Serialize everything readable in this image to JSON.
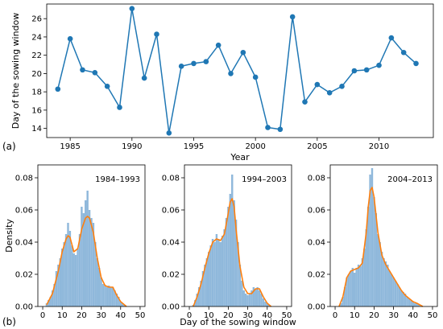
{
  "chart_data": [
    {
      "type": "line",
      "panel_label": "(a)",
      "title": "",
      "xlabel": "Year",
      "ylabel": "Day of the sowing window",
      "xlim": [
        1983.1,
        2014.4
      ],
      "ylim": [
        13.0,
        27.6
      ],
      "x_ticks": [
        1985,
        1990,
        1995,
        2000,
        2005,
        2010
      ],
      "y_ticks": [
        14,
        16,
        18,
        20,
        22,
        24,
        26
      ],
      "grid": false,
      "color": "#1f77b4",
      "series": [
        {
          "x": [
            1984,
            1985,
            1986,
            1987,
            1988,
            1989,
            1990,
            1991,
            1992,
            1993,
            1994,
            1995,
            1996,
            1997,
            1998,
            1999,
            2000,
            2001,
            2002,
            2003,
            2004,
            2005,
            2006,
            2007,
            2008,
            2009,
            2010,
            2011,
            2012,
            2013
          ],
          "y": [
            18.3,
            23.8,
            20.4,
            20.1,
            18.6,
            16.3,
            27.1,
            19.5,
            24.3,
            13.5,
            20.8,
            21.1,
            21.3,
            23.1,
            20.0,
            22.3,
            19.6,
            14.1,
            13.9,
            26.2,
            16.9,
            18.8,
            17.9,
            18.6,
            20.3,
            20.4,
            20.9,
            23.9,
            22.3,
            21.1
          ]
        }
      ]
    },
    {
      "type": "bar",
      "panel_label": "(b)",
      "annotation": "1984–1993",
      "xlabel": "",
      "ylabel": "Density",
      "xlim": [
        -2.5,
        52.5
      ],
      "ylim": [
        0,
        0.088
      ],
      "x_ticks": [
        0,
        10,
        20,
        30,
        40,
        50
      ],
      "y_ticks": [
        0.0,
        0.02,
        0.04,
        0.06,
        0.08
      ],
      "hist_color": "#8fb8db",
      "kde_color": "#ff7f0e",
      "kde": {
        "x": [
          2,
          5,
          8,
          10,
          12,
          13,
          14,
          16,
          18,
          20,
          22,
          23,
          24,
          26,
          28,
          30,
          32,
          34,
          36,
          38,
          40,
          43
        ],
        "y": [
          0.001,
          0.008,
          0.022,
          0.034,
          0.042,
          0.044,
          0.043,
          0.034,
          0.036,
          0.048,
          0.055,
          0.056,
          0.055,
          0.046,
          0.03,
          0.018,
          0.013,
          0.012,
          0.012,
          0.007,
          0.003,
          0.0
        ]
      },
      "hist": {
        "x": [
          1,
          2,
          3,
          4,
          5,
          6,
          7,
          8,
          9,
          10,
          11,
          12,
          13,
          14,
          15,
          16,
          17,
          18,
          19,
          20,
          21,
          22,
          23,
          24,
          25,
          26,
          27,
          28,
          29,
          30,
          31,
          32,
          33,
          34,
          35,
          36,
          37,
          38,
          39,
          40,
          41,
          42,
          43
        ],
        "y": [
          0.0,
          0.002,
          0.004,
          0.006,
          0.01,
          0.014,
          0.022,
          0.026,
          0.03,
          0.036,
          0.04,
          0.045,
          0.052,
          0.047,
          0.038,
          0.033,
          0.032,
          0.036,
          0.045,
          0.062,
          0.058,
          0.066,
          0.072,
          0.06,
          0.055,
          0.052,
          0.04,
          0.03,
          0.024,
          0.018,
          0.014,
          0.013,
          0.012,
          0.013,
          0.012,
          0.012,
          0.01,
          0.008,
          0.006,
          0.003,
          0.002,
          0.001,
          0.0
        ]
      }
    },
    {
      "type": "bar",
      "annotation": "1994–2003",
      "xlabel": "Day of the sowing window",
      "ylabel": "",
      "xlim": [
        -2.5,
        52.5
      ],
      "ylim": [
        0,
        0.088
      ],
      "x_ticks": [
        0,
        10,
        20,
        30,
        40,
        50
      ],
      "y_ticks": [
        0.0,
        0.02,
        0.04,
        0.06,
        0.08
      ],
      "hist_color": "#8fb8db",
      "kde_color": "#ff7f0e",
      "kde": {
        "x": [
          2,
          4,
          6,
          8,
          10,
          12,
          14,
          16,
          18,
          20,
          21,
          22,
          23,
          24,
          26,
          28,
          30,
          32,
          34,
          36,
          38,
          40,
          42
        ],
        "y": [
          0.0,
          0.006,
          0.014,
          0.024,
          0.033,
          0.04,
          0.042,
          0.041,
          0.045,
          0.058,
          0.065,
          0.067,
          0.062,
          0.048,
          0.025,
          0.012,
          0.008,
          0.008,
          0.011,
          0.011,
          0.006,
          0.002,
          0.0
        ]
      },
      "hist": {
        "x": [
          2,
          3,
          4,
          5,
          6,
          7,
          8,
          9,
          10,
          11,
          12,
          13,
          14,
          15,
          16,
          17,
          18,
          19,
          20,
          21,
          22,
          23,
          24,
          25,
          26,
          27,
          28,
          29,
          30,
          31,
          32,
          33,
          34,
          35,
          36,
          37,
          38,
          39,
          40,
          41,
          42
        ],
        "y": [
          0.001,
          0.004,
          0.008,
          0.012,
          0.016,
          0.022,
          0.026,
          0.03,
          0.034,
          0.038,
          0.042,
          0.04,
          0.045,
          0.042,
          0.04,
          0.044,
          0.048,
          0.055,
          0.062,
          0.07,
          0.082,
          0.066,
          0.054,
          0.04,
          0.026,
          0.016,
          0.01,
          0.008,
          0.007,
          0.008,
          0.01,
          0.012,
          0.011,
          0.012,
          0.01,
          0.008,
          0.005,
          0.003,
          0.002,
          0.001,
          0.0
        ]
      }
    },
    {
      "type": "bar",
      "annotation": "2004–2013",
      "xlabel": "",
      "ylabel": "",
      "xlim": [
        -2.5,
        52.5
      ],
      "ylim": [
        0,
        0.088
      ],
      "x_ticks": [
        0,
        10,
        20,
        30,
        40,
        50
      ],
      "y_ticks": [
        0.0,
        0.02,
        0.04,
        0.06,
        0.08
      ],
      "hist_color": "#8fb8db",
      "kde_color": "#ff7f0e",
      "kde": {
        "x": [
          2,
          4,
          6,
          8,
          10,
          12,
          14,
          16,
          17,
          18,
          19,
          20,
          22,
          24,
          26,
          28,
          30,
          32,
          34,
          36,
          38,
          40,
          42,
          45
        ],
        "y": [
          0.0,
          0.006,
          0.018,
          0.022,
          0.023,
          0.024,
          0.027,
          0.046,
          0.062,
          0.072,
          0.074,
          0.068,
          0.046,
          0.032,
          0.026,
          0.022,
          0.018,
          0.014,
          0.01,
          0.007,
          0.005,
          0.003,
          0.002,
          0.0
        ]
      },
      "hist": {
        "x": [
          3,
          4,
          5,
          6,
          7,
          8,
          9,
          10,
          11,
          12,
          13,
          14,
          15,
          16,
          17,
          18,
          19,
          20,
          21,
          22,
          23,
          24,
          25,
          26,
          27,
          28,
          29,
          30,
          31,
          32,
          33,
          34,
          35,
          36,
          37,
          38,
          39,
          40,
          41,
          42,
          43,
          44
        ],
        "y": [
          0.002,
          0.006,
          0.012,
          0.018,
          0.02,
          0.022,
          0.024,
          0.021,
          0.024,
          0.026,
          0.025,
          0.03,
          0.036,
          0.048,
          0.062,
          0.082,
          0.086,
          0.068,
          0.058,
          0.045,
          0.04,
          0.034,
          0.03,
          0.028,
          0.026,
          0.022,
          0.02,
          0.018,
          0.016,
          0.014,
          0.012,
          0.01,
          0.009,
          0.008,
          0.006,
          0.005,
          0.004,
          0.003,
          0.002,
          0.002,
          0.001,
          0.0
        ]
      }
    }
  ]
}
